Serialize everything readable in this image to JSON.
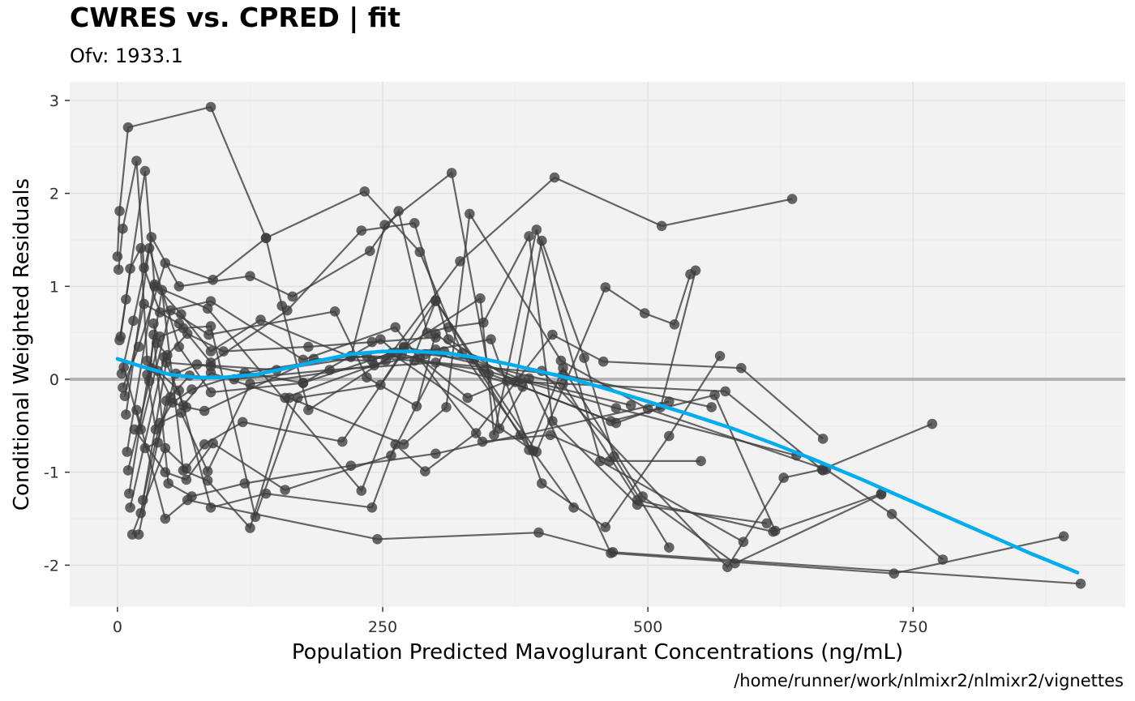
{
  "chart_data": {
    "type": "scatter",
    "title": "CWRES vs. CPRED | fit",
    "subtitle": "Ofv: 1933.1",
    "xlabel": "Population Predicted Mavoglurant Concentrations (ng/mL)",
    "ylabel": "Conditional Weighted Residuals",
    "caption": "/home/runner/work/nlmixr2/nlmixr2/vignettes",
    "xlim": [
      -45,
      950
    ],
    "ylim": [
      -2.45,
      3.2
    ],
    "x_ticks": [
      0,
      250,
      500,
      750
    ],
    "x_tick_labels": [
      "0",
      "250",
      "500",
      "750"
    ],
    "y_ticks": [
      -2,
      -1,
      0,
      1,
      2,
      3
    ],
    "y_tick_labels": [
      "-2",
      "-1",
      "0",
      "1",
      "2",
      "3"
    ],
    "grid": true,
    "reference_line": {
      "y": 0,
      "color": "#b3b3b3"
    },
    "point_color": "#3c3c3c",
    "line_color": "#3c3c3c",
    "smooth_color": "#00aeef",
    "panel_background": "#f2f2f2",
    "grid_color": "#e3e3e3",
    "series": [
      {
        "points": [
          [
            0,
            1.32
          ],
          [
            2,
            1.81
          ],
          [
            10,
            2.71
          ],
          [
            88,
            2.93
          ],
          [
            140,
            1.52
          ],
          [
            233,
            2.02
          ],
          [
            285,
            1.37
          ],
          [
            325,
            0.28
          ],
          [
            430,
            -1.38
          ]
        ]
      },
      {
        "points": [
          [
            1,
            1.18
          ],
          [
            5,
            1.62
          ],
          [
            18,
            2.35
          ],
          [
            25,
            1.2
          ],
          [
            40,
            0.72
          ],
          [
            88,
            0.84
          ],
          [
            175,
            0.21
          ],
          [
            262,
            0.56
          ],
          [
            344,
            -0.67
          ],
          [
            408,
            -0.6
          ],
          [
            464,
            -0.88
          ],
          [
            550,
            -0.88
          ]
        ]
      },
      {
        "points": [
          [
            2,
            0.42
          ],
          [
            8,
            0.86
          ],
          [
            26,
            2.24
          ],
          [
            35,
            1.0
          ],
          [
            85,
            0.76
          ],
          [
            230,
            -1.2
          ],
          [
            300,
            0.84
          ],
          [
            395,
            -0.78
          ],
          [
            460,
            0.99
          ],
          [
            497,
            0.71
          ],
          [
            525,
            0.59
          ],
          [
            540,
            1.13
          ]
        ]
      },
      {
        "points": [
          [
            3,
            0.46
          ],
          [
            12,
            1.19
          ],
          [
            22,
            1.41
          ],
          [
            28,
            0.2
          ],
          [
            58,
            -0.12
          ],
          [
            88,
            -1.38
          ],
          [
            140,
            -1.23
          ],
          [
            240,
            -1.38
          ],
          [
            262,
            -0.7
          ],
          [
            290,
            -0.99
          ],
          [
            338,
            -0.58
          ],
          [
            410,
            0.48
          ],
          [
            458,
            0.19
          ],
          [
            588,
            0.12
          ],
          [
            665,
            -0.64
          ]
        ]
      },
      {
        "points": [
          [
            4,
            0.06
          ],
          [
            15,
            0.63
          ],
          [
            32,
            1.53
          ],
          [
            58,
            1.0
          ],
          [
            125,
            1.11
          ],
          [
            165,
            0.89
          ],
          [
            238,
            1.38
          ],
          [
            265,
            1.81
          ],
          [
            292,
            0.5
          ],
          [
            312,
            0.56
          ],
          [
            345,
            0.61
          ],
          [
            388,
            1.54
          ],
          [
            410,
            -0.45
          ],
          [
            490,
            -1.35
          ],
          [
            612,
            -1.55
          ]
        ]
      },
      {
        "points": [
          [
            5,
            -0.09
          ],
          [
            20,
            0.35
          ],
          [
            45,
            1.25
          ],
          [
            90,
            1.07
          ],
          [
            140,
            1.52
          ],
          [
            155,
            0.79
          ],
          [
            180,
            -0.33
          ],
          [
            270,
            0.34
          ],
          [
            342,
            0.87
          ],
          [
            355,
            -0.6
          ],
          [
            395,
            1.61
          ],
          [
            455,
            -0.88
          ],
          [
            590,
            -1.75
          ]
        ]
      },
      {
        "points": [
          [
            6,
            0.13
          ],
          [
            22,
            -0.54
          ],
          [
            50,
            0.74
          ],
          [
            86,
            0.48
          ],
          [
            205,
            0.73
          ],
          [
            235,
            0.02
          ],
          [
            282,
            -0.29
          ],
          [
            300,
            0.49
          ],
          [
            350,
            0.06
          ],
          [
            470,
            -0.47
          ],
          [
            512,
            -0.3
          ],
          [
            545,
            1.17
          ]
        ]
      },
      {
        "points": [
          [
            7,
            -0.18
          ],
          [
            25,
            0.81
          ],
          [
            58,
            0.6
          ],
          [
            88,
            0.18
          ],
          [
            160,
            0.74
          ],
          [
            230,
            1.6
          ],
          [
            280,
            1.68
          ],
          [
            312,
            0.43
          ],
          [
            375,
            -0.03
          ],
          [
            400,
            1.49
          ],
          [
            440,
            0.23
          ],
          [
            468,
            -0.83
          ],
          [
            520,
            -1.81
          ]
        ]
      },
      {
        "points": [
          [
            8,
            -0.38
          ],
          [
            30,
            1.41
          ],
          [
            58,
            0.35
          ],
          [
            88,
            -0.14
          ],
          [
            175,
            -0.04
          ],
          [
            248,
            0.43
          ],
          [
            262,
            0.29
          ],
          [
            300,
            0.32
          ],
          [
            352,
            0.43
          ],
          [
            400,
            -1.12
          ],
          [
            460,
            -1.59
          ],
          [
            520,
            -0.61
          ],
          [
            568,
            0.25
          ]
        ]
      },
      {
        "points": [
          [
            9,
            -0.78
          ],
          [
            35,
            1.02
          ],
          [
            60,
            0.7
          ],
          [
            88,
            0.3
          ],
          [
            135,
            0.64
          ],
          [
            220,
            0.24
          ],
          [
            252,
            1.66
          ],
          [
            315,
            2.22
          ],
          [
            360,
            -0.53
          ],
          [
            388,
            0.01
          ],
          [
            465,
            -1.87
          ],
          [
            732,
            -2.09
          ],
          [
            892,
            -1.69
          ]
        ]
      },
      {
        "points": [
          [
            10,
            -0.98
          ],
          [
            40,
            0.46
          ],
          [
            62,
            0.55
          ],
          [
            88,
            0.57
          ],
          [
            130,
            -1.48
          ],
          [
            170,
            -0.2
          ],
          [
            248,
            -0.06
          ],
          [
            300,
            0.85
          ],
          [
            388,
            -0.76
          ],
          [
            420,
            0.12
          ],
          [
            495,
            -1.26
          ],
          [
            582,
            -1.98
          ],
          [
            720,
            -1.24
          ]
        ]
      },
      {
        "points": [
          [
            11,
            -1.23
          ],
          [
            42,
            0.96
          ],
          [
            62,
            -0.98
          ],
          [
            85,
            -1.09
          ],
          [
            125,
            -1.6
          ],
          [
            162,
            -0.2
          ],
          [
            270,
            -0.7
          ],
          [
            310,
            -0.3
          ],
          [
            332,
            1.78
          ],
          [
            418,
            0.2
          ],
          [
            500,
            -0.32
          ],
          [
            668,
            -0.97
          ],
          [
            730,
            -1.45
          ],
          [
            778,
            -1.94
          ]
        ]
      },
      {
        "points": [
          [
            12,
            -1.38
          ],
          [
            44,
            0.24
          ],
          [
            62,
            -0.28
          ],
          [
            88,
            0.07
          ],
          [
            158,
            -0.2
          ],
          [
            253,
            0.2
          ],
          [
            323,
            1.27
          ],
          [
            412,
            2.17
          ],
          [
            513,
            1.65
          ],
          [
            636,
            1.94
          ]
        ]
      },
      {
        "points": [
          [
            14,
            -1.67
          ],
          [
            45,
            -0.74
          ],
          [
            65,
            -0.96
          ],
          [
            82,
            -0.7
          ],
          [
            118,
            -0.46
          ],
          [
            212,
            -0.67
          ],
          [
            268,
            0.27
          ],
          [
            382,
            -0.08
          ],
          [
            465,
            -0.45
          ],
          [
            563,
            -0.17
          ],
          [
            620,
            -1.63
          ]
        ]
      },
      {
        "points": [
          [
            16,
            -0.54
          ],
          [
            45,
            -1.0
          ],
          [
            65,
            -1.08
          ],
          [
            90,
            -0.69
          ],
          [
            158,
            -1.19
          ],
          [
            258,
            -0.82
          ],
          [
            308,
            0.3
          ],
          [
            400,
            0.09
          ],
          [
            575,
            -2.02
          ],
          [
            628,
            -1.06
          ],
          [
            664,
            -0.97
          ],
          [
            768,
            -0.48
          ]
        ]
      },
      {
        "points": [
          [
            18,
            -0.33
          ],
          [
            45,
            -1.5
          ],
          [
            66,
            -1.3
          ],
          [
            245,
            -1.72
          ],
          [
            397,
            -1.65
          ],
          [
            467,
            -1.86
          ],
          [
            908,
            -2.2
          ]
        ]
      },
      {
        "points": [
          [
            20,
            -1.67
          ],
          [
            46,
            -0.23
          ],
          [
            65,
            -0.3
          ],
          [
            82,
            -0.34
          ],
          [
            185,
            0.22
          ],
          [
            240,
            0.2
          ],
          [
            270,
            0.35
          ],
          [
            420,
            -0.05
          ],
          [
            490,
            -1.3
          ],
          [
            618,
            -1.64
          ],
          [
            720,
            -1.23
          ]
        ]
      },
      {
        "points": [
          [
            22,
            -1.44
          ],
          [
            46,
            0.18
          ],
          [
            88,
            0.14
          ],
          [
            175,
            -0.04
          ],
          [
            258,
            0.28
          ],
          [
            392,
            -0.77
          ]
        ]
      },
      {
        "points": [
          [
            24,
            -1.3
          ],
          [
            40,
            -0.47
          ],
          [
            60,
            -0.36
          ],
          [
            85,
            -0.99
          ],
          [
            125,
            -0.05
          ],
          [
            242,
            0.15
          ],
          [
            290,
            0.27
          ],
          [
            336,
            0.21
          ],
          [
            380,
            0.0
          ],
          [
            484,
            -0.28
          ]
        ]
      },
      {
        "points": [
          [
            26,
            -0.74
          ],
          [
            38,
            -0.68
          ],
          [
            55,
            0.06
          ],
          [
            75,
            0.16
          ],
          [
            150,
            0.1
          ],
          [
            235,
            0.25
          ],
          [
            285,
            0.23
          ],
          [
            330,
            -0.2
          ],
          [
            367,
            -0.02
          ],
          [
            573,
            -0.13
          ],
          [
            665,
            -0.98
          ]
        ]
      },
      {
        "points": [
          [
            28,
            0.05
          ],
          [
            36,
            -0.54
          ],
          [
            52,
            -0.25
          ],
          [
            70,
            -0.11
          ],
          [
            120,
            0.07
          ],
          [
            220,
            0.25
          ],
          [
            280,
            0.2
          ],
          [
            345,
            0.1
          ],
          [
            470,
            -0.31
          ],
          [
            640,
            -0.82
          ]
        ]
      },
      {
        "points": [
          [
            30,
            -0.02
          ],
          [
            34,
            0.48
          ],
          [
            48,
            -1.12
          ],
          [
            70,
            -1.26
          ],
          [
            120,
            -1.12
          ],
          [
            220,
            -0.93
          ],
          [
            300,
            -0.8
          ],
          [
            380,
            -0.6
          ],
          [
            520,
            -0.24
          ]
        ]
      },
      {
        "points": [
          [
            32,
            0.12
          ],
          [
            38,
            0.09
          ],
          [
            50,
            -0.19
          ],
          [
            68,
            0.04
          ],
          [
            110,
            0.0
          ],
          [
            200,
            0.1
          ],
          [
            300,
            0.18
          ],
          [
            420,
            0.05
          ],
          [
            560,
            -0.3
          ]
        ]
      },
      {
        "points": [
          [
            34,
            0.6
          ],
          [
            37,
            0.39
          ],
          [
            47,
            0.26
          ],
          [
            66,
            0.49
          ],
          [
            100,
            0.3
          ],
          [
            180,
            0.35
          ],
          [
            240,
            0.4
          ],
          [
            300,
            0.45
          ]
        ]
      }
    ],
    "smooth": {
      "x": [
        0,
        25,
        50,
        75,
        100,
        130,
        160,
        190,
        220,
        250,
        280,
        310,
        340,
        370,
        400,
        430,
        460,
        500,
        540,
        580,
        620,
        660,
        700,
        740,
        780,
        820,
        860,
        905
      ],
      "y": [
        0.22,
        0.13,
        0.05,
        0.02,
        0.02,
        0.05,
        0.12,
        0.2,
        0.27,
        0.3,
        0.3,
        0.28,
        0.23,
        0.16,
        0.08,
        0.0,
        -0.1,
        -0.24,
        -0.38,
        -0.53,
        -0.7,
        -0.88,
        -1.07,
        -1.27,
        -1.47,
        -1.67,
        -1.87,
        -2.08
      ]
    }
  }
}
